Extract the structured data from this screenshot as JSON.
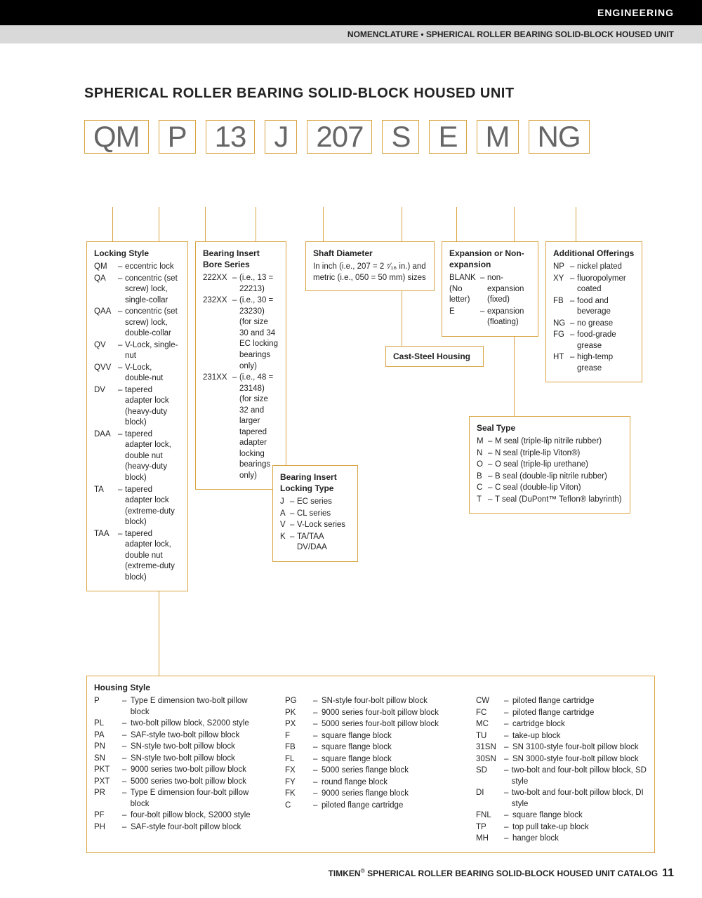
{
  "header": {
    "category": "ENGINEERING",
    "subhead": "NOMENCLATURE • SPHERICAL ROLLER BEARING SOLID-BLOCK HOUSED UNIT"
  },
  "title": "SPHERICAL ROLLER BEARING SOLID-BLOCK HOUSED UNIT",
  "code": [
    "QM",
    "P",
    "13",
    "J",
    "207",
    "S",
    "E",
    "M",
    "NG"
  ],
  "boxes": {
    "locking": {
      "title": "Locking Style",
      "items": [
        {
          "c": "QM",
          "d": "eccentric lock"
        },
        {
          "c": "QA",
          "d": "concentric (set screw) lock, single-collar"
        },
        {
          "c": "QAA",
          "d": "concentric (set screw) lock, double-collar"
        },
        {
          "c": "QV",
          "d": "V-Lock, single-nut"
        },
        {
          "c": "QVV",
          "d": "V-Lock, double-nut"
        },
        {
          "c": "DV",
          "d": "tapered adapter lock (heavy-duty block)"
        },
        {
          "c": "DAA",
          "d": "tapered adapter lock, double nut (heavy-duty block)"
        },
        {
          "c": "TA",
          "d": "tapered adapter lock (extreme-duty block)"
        },
        {
          "c": "TAA",
          "d": "tapered adapter lock, double nut (extreme-duty block)"
        }
      ]
    },
    "bore": {
      "title": "Bearing Insert Bore Series",
      "items": [
        {
          "c": "222XX",
          "d": "(i.e., 13 = 22213)"
        },
        {
          "c": "232XX",
          "d": "(i.e., 30 = 23230) (for size 30 and 34 EC locking bearings only)"
        },
        {
          "c": "231XX",
          "d": "(i.e., 48 = 23148) (for size 32 and larger tapered adapter locking bearings only)"
        }
      ]
    },
    "insertlock": {
      "title": "Bearing Insert Locking Type",
      "items": [
        {
          "c": "J",
          "d": "EC series"
        },
        {
          "c": "A",
          "d": "CL series"
        },
        {
          "c": "V",
          "d": "V-Lock series"
        },
        {
          "c": "K",
          "d": "TA/TAA DV/DAA"
        }
      ]
    },
    "shaft": {
      "title": "Shaft Diameter",
      "text": "In inch (i.e., 207 = 2 ⁷⁄₁₆ in.) and metric (i.e., 050 = 50 mm) sizes"
    },
    "caststeel": {
      "title": "Cast-Steel Housing"
    },
    "expansion": {
      "title": "Expansion or Non-expansion",
      "items": [
        {
          "c": "BLANK (No letter)",
          "d": "non-expansion (fixed)"
        },
        {
          "c": "E",
          "d": "expansion (floating)"
        }
      ]
    },
    "seal": {
      "title": "Seal Type",
      "items": [
        {
          "c": "M",
          "d": "M seal (triple-lip nitrile rubber)"
        },
        {
          "c": "N",
          "d": "N seal (triple-lip Viton®)"
        },
        {
          "c": "O",
          "d": "O seal (triple-lip urethane)"
        },
        {
          "c": "B",
          "d": "B seal (double-lip nitrile rubber)"
        },
        {
          "c": "C",
          "d": "C seal (double-lip Viton)"
        },
        {
          "c": "T",
          "d": "T seal (DuPont™ Teflon® labyrinth)"
        }
      ]
    },
    "additional": {
      "title": "Additional Offerings",
      "items": [
        {
          "c": "NP",
          "d": "nickel plated"
        },
        {
          "c": "XY",
          "d": "fluoropolymer coated"
        },
        {
          "c": "FB",
          "d": "food and beverage"
        },
        {
          "c": "NG",
          "d": "no grease"
        },
        {
          "c": "FG",
          "d": "food-grade grease"
        },
        {
          "c": "HT",
          "d": "high-temp grease"
        }
      ]
    },
    "housing": {
      "title": "Housing Style",
      "col1": [
        {
          "c": "P",
          "d": "Type E dimension two-bolt pillow block"
        },
        {
          "c": "PL",
          "d": "two-bolt pillow block, S2000 style"
        },
        {
          "c": "PA",
          "d": "SAF-style two-bolt pillow block"
        },
        {
          "c": "PN",
          "d": "SN-style two-bolt pillow block"
        },
        {
          "c": "SN",
          "d": "SN-style two-bolt pillow block"
        },
        {
          "c": "PKT",
          "d": "9000 series two-bolt pillow block"
        },
        {
          "c": "PXT",
          "d": "5000 series two-bolt pillow block"
        },
        {
          "c": "PR",
          "d": "Type E dimension four-bolt pillow block"
        },
        {
          "c": "PF",
          "d": "four-bolt pillow block, S2000 style"
        },
        {
          "c": "PH",
          "d": "SAF-style four-bolt pillow block"
        }
      ],
      "col2": [
        {
          "c": "PG",
          "d": "SN-style four-bolt pillow block"
        },
        {
          "c": "PK",
          "d": "9000 series four-bolt pillow block"
        },
        {
          "c": "PX",
          "d": "5000 series four-bolt pillow block"
        },
        {
          "c": "F",
          "d": "square flange block"
        },
        {
          "c": "FB",
          "d": "square flange block"
        },
        {
          "c": "FL",
          "d": "square flange block"
        },
        {
          "c": "FX",
          "d": "5000 series flange block"
        },
        {
          "c": "FY",
          "d": "round flange block"
        },
        {
          "c": "FK",
          "d": "9000 series flange block"
        },
        {
          "c": "C",
          "d": "piloted flange cartridge"
        }
      ],
      "col3": [
        {
          "c": "CW",
          "d": "piloted flange cartridge"
        },
        {
          "c": "FC",
          "d": "piloted flange cartridge"
        },
        {
          "c": "MC",
          "d": "cartridge block"
        },
        {
          "c": "TU",
          "d": "take-up block"
        },
        {
          "c": "31SN",
          "d": "SN 3100-style four-bolt pillow block"
        },
        {
          "c": "30SN",
          "d": "SN 3000-style four-bolt pillow block"
        },
        {
          "c": "SD",
          "d": "two-bolt and four-bolt pillow block, SD style"
        },
        {
          "c": "DI",
          "d": "two-bolt and four-bolt pillow block, DI style"
        },
        {
          "c": "FNL",
          "d": "square flange block"
        },
        {
          "c": "TP",
          "d": "top pull take-up block"
        },
        {
          "c": "MH",
          "d": "hanger block"
        }
      ]
    }
  },
  "footer": {
    "brand": "TIMKEN",
    "text": " SPHERICAL ROLLER BEARING SOLID-BLOCK HOUSED UNIT CATALOG",
    "page": "11"
  },
  "style": {
    "accent": "#d9a441",
    "text": "#222",
    "codeColor": "#666",
    "bg": "#ffffff"
  }
}
